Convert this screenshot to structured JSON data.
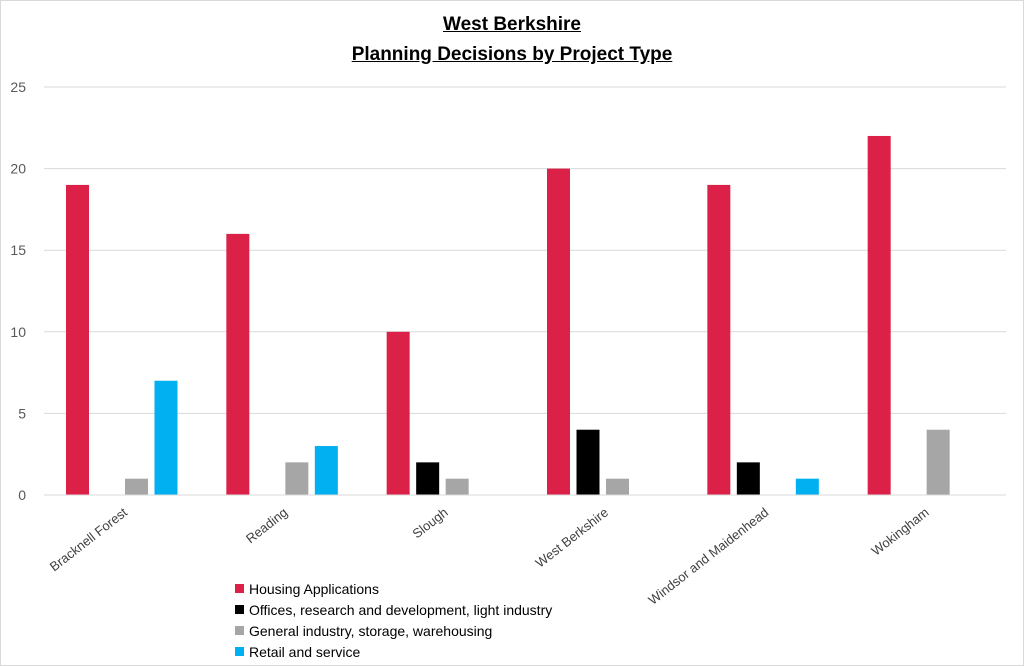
{
  "chart_data": {
    "type": "bar",
    "title": "West Berkshire",
    "subtitle": "Planning Decisions by Project Type",
    "xlabel": "",
    "ylabel": "",
    "ylim": [
      0,
      25
    ],
    "yticks": [
      0,
      5,
      10,
      15,
      20,
      25
    ],
    "grid": true,
    "legend_position": "bottom-left",
    "categories": [
      "Bracknell Forest",
      "Reading",
      "Slough",
      "West Berkshire",
      "Windsor and Maidenhead",
      "Wokingham"
    ],
    "series": [
      {
        "name": "Housing Applications",
        "color": "#dc2148",
        "values": [
          19,
          16,
          10,
          20,
          19,
          22
        ]
      },
      {
        "name": "Offices, research and development, light industry",
        "color": "#000000",
        "values": [
          0,
          0,
          2,
          4,
          2,
          0
        ]
      },
      {
        "name": "General industry, storage, warehousing",
        "color": "#a6a6a6",
        "values": [
          1,
          2,
          1,
          1,
          0,
          4
        ]
      },
      {
        "name": "Retail and service",
        "color": "#00b0f0",
        "values": [
          7,
          3,
          0,
          0,
          1,
          0
        ]
      }
    ]
  }
}
